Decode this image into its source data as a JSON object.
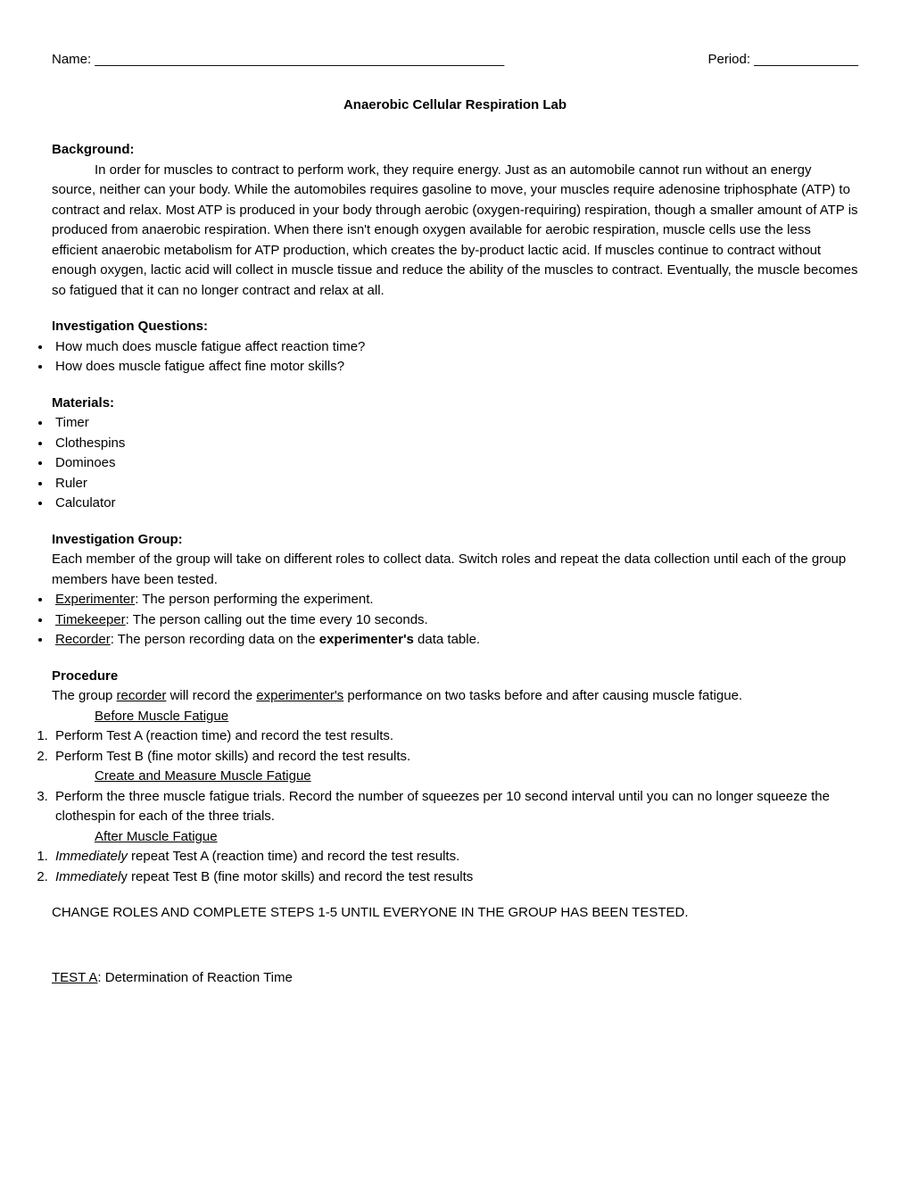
{
  "header": {
    "name_label": "Name: _______________________________________________________",
    "period_label": "Period: ______________"
  },
  "title": "Anaerobic Cellular Respiration Lab",
  "background": {
    "heading": "Background:",
    "text": "In order for muscles to contract to perform work, they require energy. Just as an automobile cannot run without an energy source, neither can your body. While the automobiles requires gasoline to move, your muscles require adenosine triphosphate (ATP) to contract and relax. Most ATP is produced in your body through aerobic (oxygen-requiring) respiration, though a smaller amount of ATP is produced from anaerobic respiration. When there isn't enough oxygen available for aerobic respiration, muscle cells use the less efficient anaerobic metabolism for ATP production, which creates the by-product lactic acid. If muscles continue to contract without enough oxygen, lactic acid will collect in muscle tissue and reduce the ability of the muscles to contract. Eventually, the muscle becomes so fatigued that it can no longer contract and relax at all."
  },
  "investigation_questions": {
    "heading": "Investigation Questions:",
    "items": [
      "How much does muscle fatigue affect reaction time?",
      "How does muscle fatigue affect fine motor skills?"
    ]
  },
  "materials": {
    "heading": "Materials:",
    "items": [
      "Timer",
      "Clothespins",
      "Dominoes",
      "Ruler",
      "Calculator"
    ]
  },
  "investigation_group": {
    "heading": "Investigation Group:",
    "intro": "Each member of the group will take on different roles to collect data. Switch roles and repeat the data collection until each of the group members have been tested.",
    "roles": [
      {
        "label": "Experimenter",
        "desc": ": The person performing the experiment."
      },
      {
        "label": "Timekeeper",
        "desc": ": The person calling out the time every 10 seconds."
      },
      {
        "label": "Recorder",
        "desc_pre": ": The person recording data on the ",
        "desc_bold": "experimenter's",
        "desc_post": " data table."
      }
    ]
  },
  "procedure": {
    "heading": "Procedure",
    "intro_pre": "The group ",
    "intro_u1": "recorder",
    "intro_mid": " will record the ",
    "intro_u2": "experimenter's",
    "intro_post": " performance on two tasks before and after causing muscle fatigue.",
    "sub1": "Before Muscle Fatigue",
    "before": [
      "Perform Test A (reaction time) and record the test results.",
      "Perform Test B (fine motor skills) and record the test results."
    ],
    "sub2": "Create and Measure Muscle Fatigue",
    "create": [
      "Perform the three muscle fatigue trials. Record the number of squeezes per 10 second interval until you can no longer squeeze the clothespin for each of the three trials."
    ],
    "sub3": "After Muscle Fatigue",
    "after": [
      {
        "em": "Immediately",
        "rest": " repeat Test A (reaction time) and record the test results."
      },
      {
        "em": "Immediatel",
        "em2": "y",
        "rest": " repeat Test B (fine motor skills) and record the test results"
      }
    ],
    "change_roles": "CHANGE ROLES AND COMPLETE STEPS 1-5 UNTIL EVERYONE IN THE GROUP HAS BEEN TESTED."
  },
  "test_a": {
    "label": "TEST A",
    "desc": ": Determination of Reaction Time"
  },
  "colors": {
    "text": "#000000",
    "background": "#ffffff"
  },
  "typography": {
    "font_family": "Arial",
    "base_size_pt": 11
  }
}
